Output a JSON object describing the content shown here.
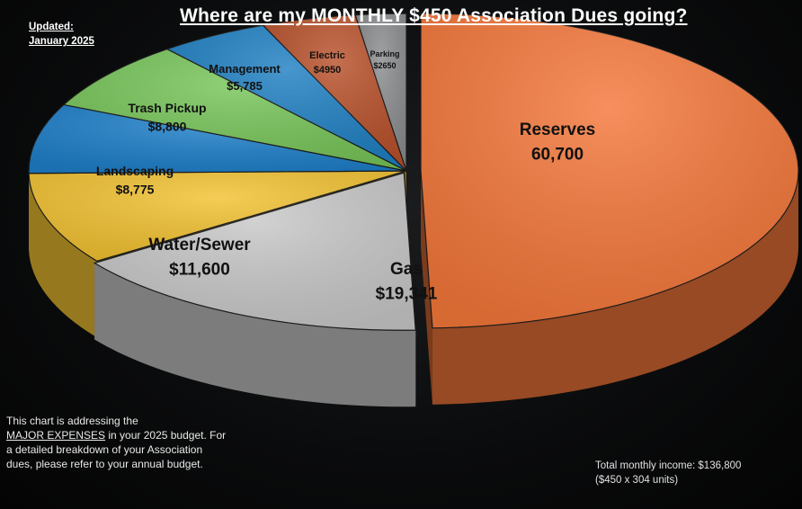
{
  "header": {
    "title": "Where are my MONTHLY $450 Association Dues going?",
    "updated_line1": "Updated:",
    "updated_line2": "January 2025"
  },
  "note": {
    "part1": "This chart is addressing the",
    "emphasis": "MAJOR EXPENSES",
    "part2": "in your 2025 budget. For a detailed breakdown of your Association dues, please refer to your annual budget."
  },
  "footer": {
    "income_line1": "Total monthly income: $136,800",
    "income_line2": "($450 x 304 units)"
  },
  "chart_data": {
    "type": "pie",
    "style": "3d-exploded",
    "title": "Where are my MONTHLY $450 Association Dues going?",
    "slices": [
      {
        "name": "Reserves",
        "value": 60700,
        "value_label": "60,700",
        "color": "#f4773a"
      },
      {
        "name": "Gas",
        "value": 19341,
        "value_label": "$19,341",
        "color": "#c8c8c8"
      },
      {
        "name": "Water/Sewer",
        "value": 11600,
        "value_label": "$11,600",
        "color": "#f2c231"
      },
      {
        "name": "Landscaping",
        "value": 8775,
        "value_label": "$8,775",
        "color": "#1d7fc9"
      },
      {
        "name": "Trash Pickup",
        "value": 8800,
        "value_label": "$8,800",
        "color": "#77c559"
      },
      {
        "name": "Management",
        "value": 5785,
        "value_label": "$5,785",
        "color": "#1f80c3"
      },
      {
        "name": "Electric",
        "value": 4950,
        "value_label": "$4950",
        "color": "#b8512b"
      },
      {
        "name": "Parking",
        "value": 2650,
        "value_label": "$2650",
        "color": "#8a8c8e"
      }
    ],
    "total_income": 136800,
    "units": 304,
    "dues": 450
  }
}
